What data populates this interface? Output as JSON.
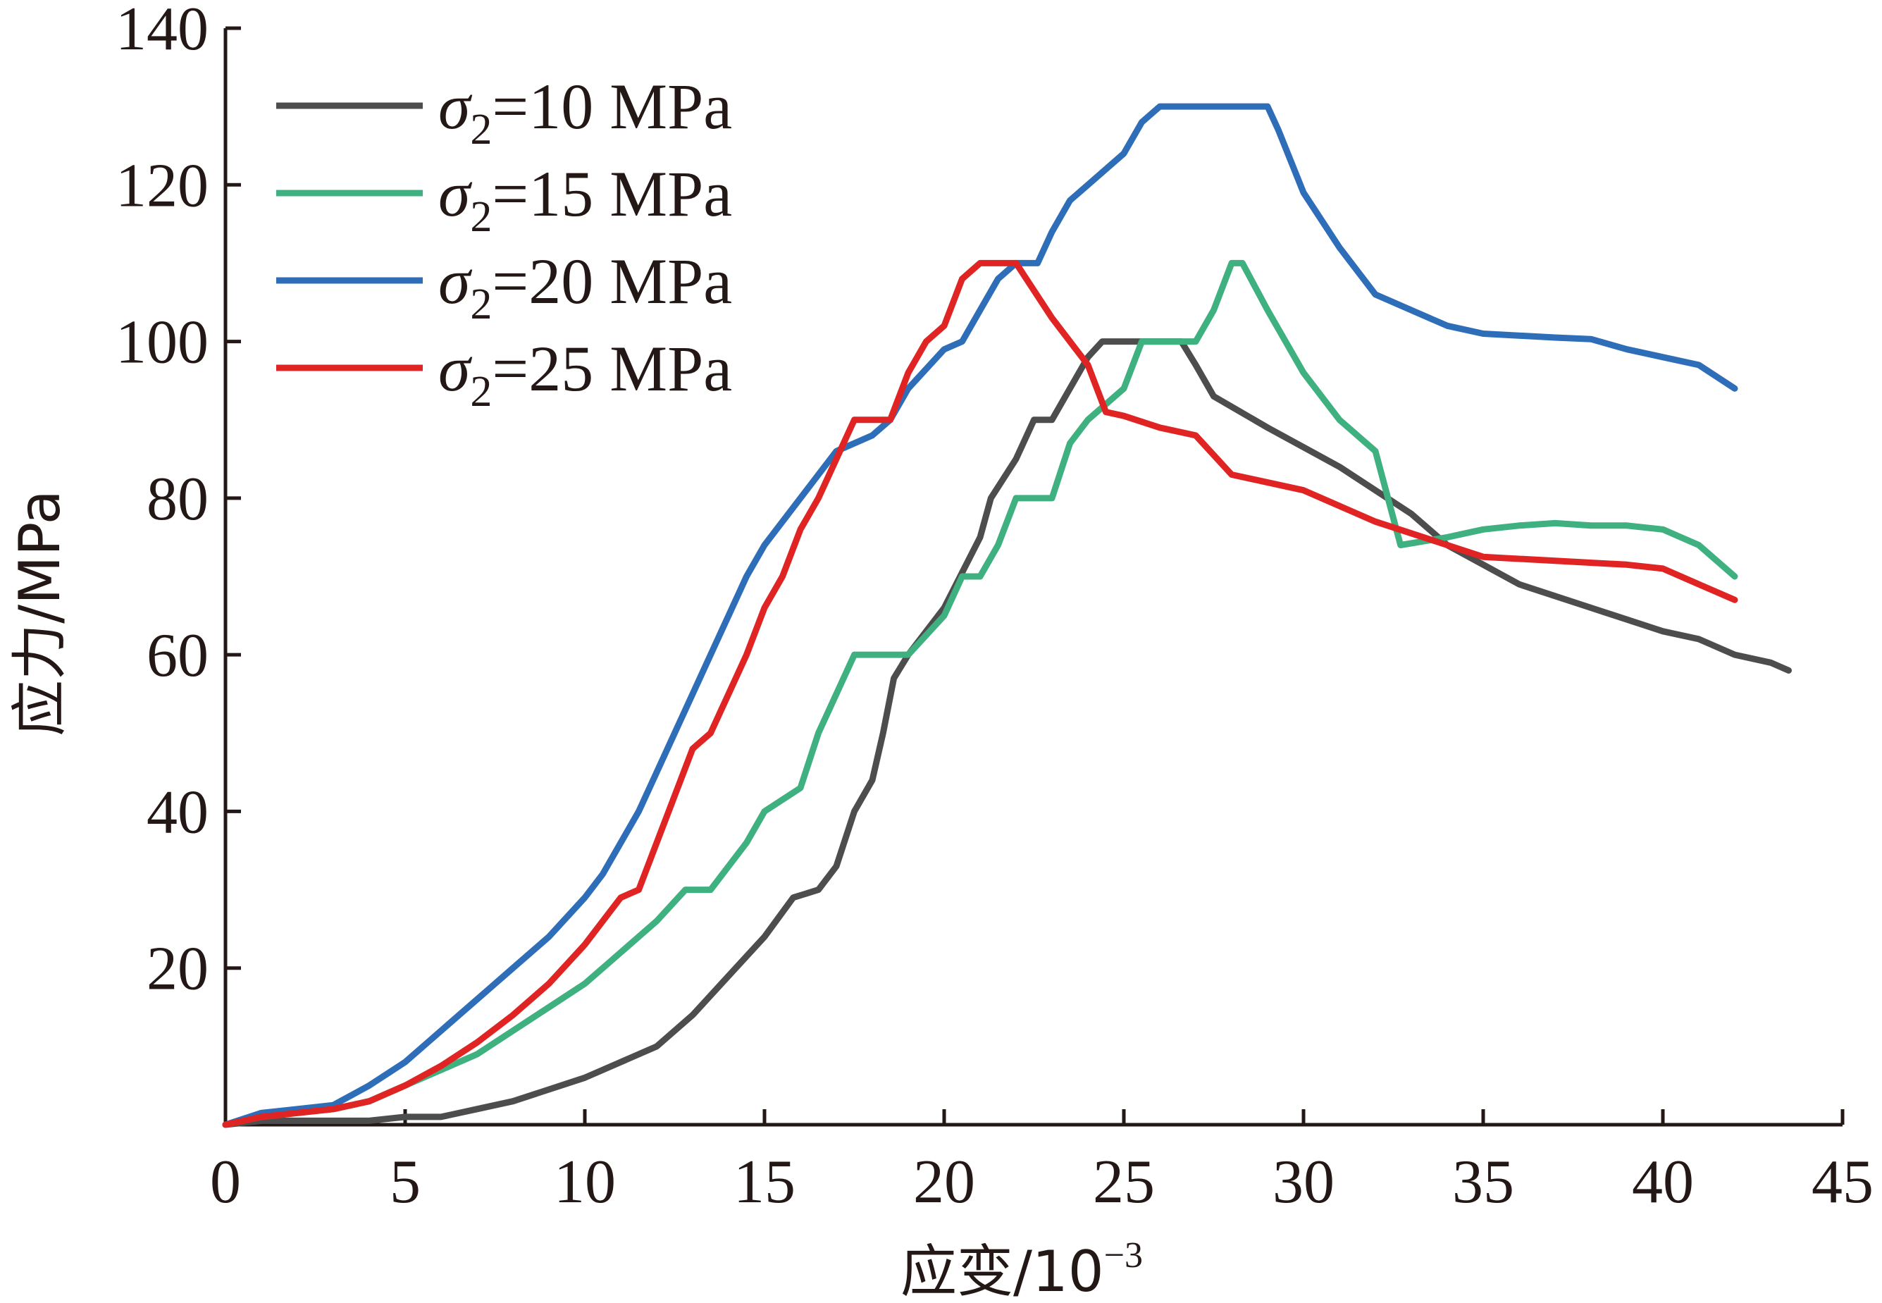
{
  "chart_data": {
    "type": "line",
    "xlabel": "应变/10",
    "xlabel_exponent": "−3",
    "ylabel": "应力/MPa",
    "xlim": [
      0,
      45
    ],
    "ylim": [
      0,
      140
    ],
    "x_ticks": [
      "0",
      "5",
      "10",
      "15",
      "20",
      "25",
      "30",
      "35",
      "40",
      "45"
    ],
    "y_ticks": [
      "20",
      "40",
      "60",
      "80",
      "100",
      "120",
      "140"
    ],
    "grid": false,
    "legend_position": "top-left",
    "series": [
      {
        "name_symbol": "σ",
        "name_subscript": "2",
        "name_value": "=10 MPa",
        "color": "#4d4d4d",
        "points": [
          [
            0,
            0
          ],
          [
            1,
            0.5
          ],
          [
            3,
            0.5
          ],
          [
            4,
            0.5
          ],
          [
            5,
            1
          ],
          [
            6,
            1
          ],
          [
            7,
            2
          ],
          [
            8,
            3
          ],
          [
            9,
            4.5
          ],
          [
            10,
            6
          ],
          [
            11,
            8
          ],
          [
            12,
            10
          ],
          [
            13,
            14
          ],
          [
            14,
            19
          ],
          [
            15,
            24
          ],
          [
            15.8,
            29
          ],
          [
            16.5,
            30
          ],
          [
            17,
            33
          ],
          [
            17.5,
            40
          ],
          [
            18,
            44
          ],
          [
            18.3,
            50
          ],
          [
            18.6,
            57
          ],
          [
            19,
            60
          ],
          [
            20,
            66
          ],
          [
            21,
            75
          ],
          [
            21.3,
            80
          ],
          [
            22,
            85
          ],
          [
            22.5,
            90
          ],
          [
            23,
            90
          ],
          [
            23.5,
            94
          ],
          [
            24,
            98
          ],
          [
            24.4,
            100
          ],
          [
            26.6,
            100
          ],
          [
            27,
            97
          ],
          [
            27.5,
            93
          ],
          [
            29,
            89
          ],
          [
            31,
            84
          ],
          [
            33,
            78
          ],
          [
            34,
            74
          ],
          [
            36,
            69
          ],
          [
            38,
            66
          ],
          [
            40,
            63
          ],
          [
            41,
            62
          ],
          [
            42,
            60
          ],
          [
            43,
            59
          ],
          [
            43.5,
            58
          ]
        ]
      },
      {
        "name_symbol": "σ",
        "name_subscript": "2",
        "name_value": "=15 MPa",
        "color": "#3fb07f",
        "points": [
          [
            0,
            0
          ],
          [
            1,
            1
          ],
          [
            3,
            2
          ],
          [
            4,
            3
          ],
          [
            5,
            5
          ],
          [
            6,
            7
          ],
          [
            7,
            9
          ],
          [
            8,
            12
          ],
          [
            9,
            15
          ],
          [
            10,
            18
          ],
          [
            11,
            22
          ],
          [
            12,
            26
          ],
          [
            12.8,
            30
          ],
          [
            13.5,
            30
          ],
          [
            14.5,
            36
          ],
          [
            15,
            40
          ],
          [
            16,
            43
          ],
          [
            16.5,
            50
          ],
          [
            17,
            55
          ],
          [
            17.5,
            60
          ],
          [
            19,
            60
          ],
          [
            20,
            65
          ],
          [
            20.5,
            70
          ],
          [
            21,
            70
          ],
          [
            21.5,
            74
          ],
          [
            22,
            80
          ],
          [
            23,
            80
          ],
          [
            23.5,
            87
          ],
          [
            24,
            90
          ],
          [
            25,
            94
          ],
          [
            25.5,
            100
          ],
          [
            27,
            100
          ],
          [
            27.5,
            104
          ],
          [
            28,
            110
          ],
          [
            28.3,
            110
          ],
          [
            29,
            104
          ],
          [
            30,
            96
          ],
          [
            31,
            90
          ],
          [
            32,
            86
          ],
          [
            32.7,
            74
          ],
          [
            34,
            75
          ],
          [
            35,
            76
          ],
          [
            36,
            76.5
          ],
          [
            37,
            76.8
          ],
          [
            38,
            76.5
          ],
          [
            39,
            76.5
          ],
          [
            40,
            76
          ],
          [
            41,
            74
          ],
          [
            41.5,
            72
          ],
          [
            42,
            70
          ]
        ]
      },
      {
        "name_symbol": "σ",
        "name_subscript": "2",
        "name_value": "=20 MPa",
        "color": "#2e6eb8",
        "points": [
          [
            0,
            0
          ],
          [
            1,
            1.5
          ],
          [
            2,
            2
          ],
          [
            3,
            2.5
          ],
          [
            4,
            5
          ],
          [
            5,
            8
          ],
          [
            6,
            12
          ],
          [
            7,
            16
          ],
          [
            8,
            20
          ],
          [
            9,
            24
          ],
          [
            10,
            29
          ],
          [
            10.5,
            32
          ],
          [
            11,
            36
          ],
          [
            11.5,
            40
          ],
          [
            12,
            45
          ],
          [
            12.5,
            50
          ],
          [
            13,
            55
          ],
          [
            13.5,
            60
          ],
          [
            14,
            65
          ],
          [
            14.5,
            70
          ],
          [
            15,
            74
          ],
          [
            16,
            80
          ],
          [
            17,
            86
          ],
          [
            18,
            88
          ],
          [
            18.5,
            90
          ],
          [
            19,
            94
          ],
          [
            20,
            99
          ],
          [
            20.5,
            100
          ],
          [
            21,
            104
          ],
          [
            21.5,
            108
          ],
          [
            22,
            110
          ],
          [
            22.6,
            110
          ],
          [
            23,
            114
          ],
          [
            23.5,
            118
          ],
          [
            24,
            120
          ],
          [
            25,
            124
          ],
          [
            25.5,
            128
          ],
          [
            26,
            130
          ],
          [
            29,
            130
          ],
          [
            29.3,
            127
          ],
          [
            30,
            119
          ],
          [
            31,
            112
          ],
          [
            32,
            106
          ],
          [
            33,
            104
          ],
          [
            34,
            102
          ],
          [
            35,
            101
          ],
          [
            37,
            100.5
          ],
          [
            38,
            100.3
          ],
          [
            39,
            99
          ],
          [
            40,
            98
          ],
          [
            41,
            97
          ],
          [
            42,
            94
          ]
        ]
      },
      {
        "name_symbol": "σ",
        "name_subscript": "2",
        "name_value": "=25 MPa",
        "color": "#e02424",
        "points": [
          [
            0,
            0
          ],
          [
            1,
            1
          ],
          [
            2,
            1.5
          ],
          [
            3,
            2
          ],
          [
            4,
            3
          ],
          [
            5,
            5
          ],
          [
            6,
            7.5
          ],
          [
            7,
            10.5
          ],
          [
            8,
            14
          ],
          [
            9,
            18
          ],
          [
            10,
            23
          ],
          [
            11,
            29
          ],
          [
            11.5,
            30
          ],
          [
            12,
            36
          ],
          [
            12.5,
            42
          ],
          [
            13,
            48
          ],
          [
            13.5,
            50
          ],
          [
            14,
            55
          ],
          [
            14.5,
            60
          ],
          [
            15,
            66
          ],
          [
            15.5,
            70
          ],
          [
            16,
            76
          ],
          [
            16.5,
            80
          ],
          [
            17,
            85
          ],
          [
            17.5,
            90
          ],
          [
            18.5,
            90
          ],
          [
            19,
            96
          ],
          [
            19.5,
            100
          ],
          [
            20,
            102
          ],
          [
            20.5,
            108
          ],
          [
            21,
            110
          ],
          [
            22,
            110
          ],
          [
            23,
            103
          ],
          [
            24,
            97
          ],
          [
            24.5,
            91
          ],
          [
            25,
            90.5
          ],
          [
            26,
            89
          ],
          [
            27,
            88
          ],
          [
            28,
            83
          ],
          [
            30,
            81
          ],
          [
            31,
            79
          ],
          [
            32,
            77
          ],
          [
            34,
            74
          ],
          [
            35,
            72.5
          ],
          [
            37,
            72
          ],
          [
            39,
            71.5
          ],
          [
            40,
            71
          ],
          [
            41,
            69
          ],
          [
            42,
            67
          ]
        ]
      }
    ]
  }
}
